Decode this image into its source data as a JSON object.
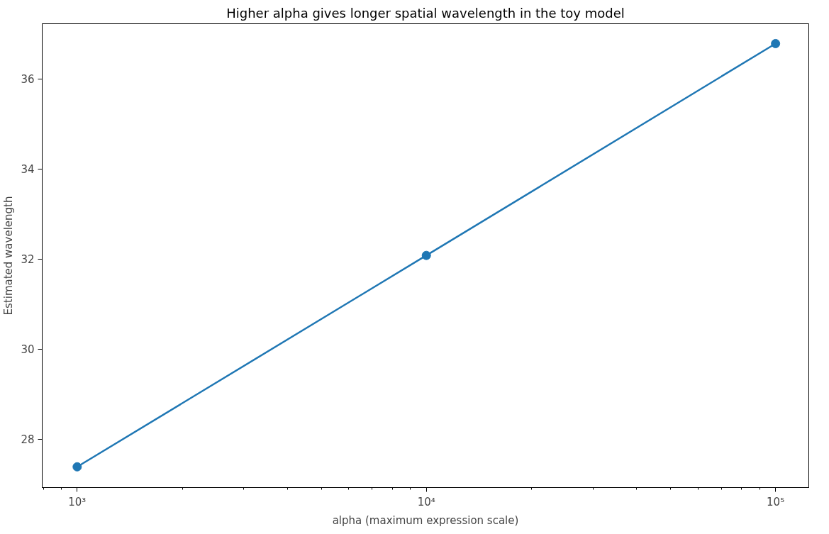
{
  "chart_data": {
    "type": "line",
    "title": "Higher alpha gives longer spatial wavelength in the toy model",
    "xlabel": "alpha (maximum expression scale)",
    "ylabel": "Estimated wavelength",
    "x": [
      1000,
      10000,
      100000
    ],
    "series": [
      {
        "color": "#1f77b4",
        "values": [
          27.39,
          32.08,
          36.78
        ]
      }
    ],
    "log": "x",
    "xlim": [
      794,
      124500
    ],
    "xticks": [
      {
        "value": 1000,
        "label": "10³"
      },
      {
        "value": 10000,
        "label": "10⁴"
      },
      {
        "value": 100000,
        "label": "10⁵"
      }
    ],
    "ylim": [
      26.93,
      37.22
    ],
    "yticks": [
      28,
      30,
      32,
      34,
      36
    ],
    "grid": false,
    "marker": "circle",
    "line_style": "solid"
  }
}
